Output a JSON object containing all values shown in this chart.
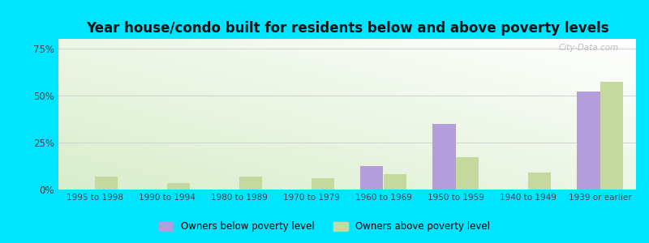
{
  "categories": [
    "1995 to 1998",
    "1990 to 1994",
    "1980 to 1989",
    "1970 to 1979",
    "1960 to 1969",
    "1950 to 1959",
    "1940 to 1949",
    "1939 or earlier"
  ],
  "below_poverty": [
    0,
    0,
    0,
    0,
    12.5,
    35.0,
    0,
    52.0
  ],
  "above_poverty": [
    7.0,
    3.5,
    7.0,
    6.0,
    8.0,
    17.0,
    9.0,
    57.0
  ],
  "below_color": "#b39ddb",
  "above_color": "#c5d89d",
  "title": "Year house/condo built for residents below and above poverty levels",
  "ylabel_ticks": [
    0,
    25,
    50,
    75
  ],
  "ylim": [
    0,
    80
  ],
  "outer_background": "#00e5ff",
  "legend_below": "Owners below poverty level",
  "legend_above": "Owners above poverty level",
  "bar_width": 0.32,
  "title_fontsize": 12,
  "tick_fontsize": 7.5,
  "ytick_fontsize": 8.5
}
